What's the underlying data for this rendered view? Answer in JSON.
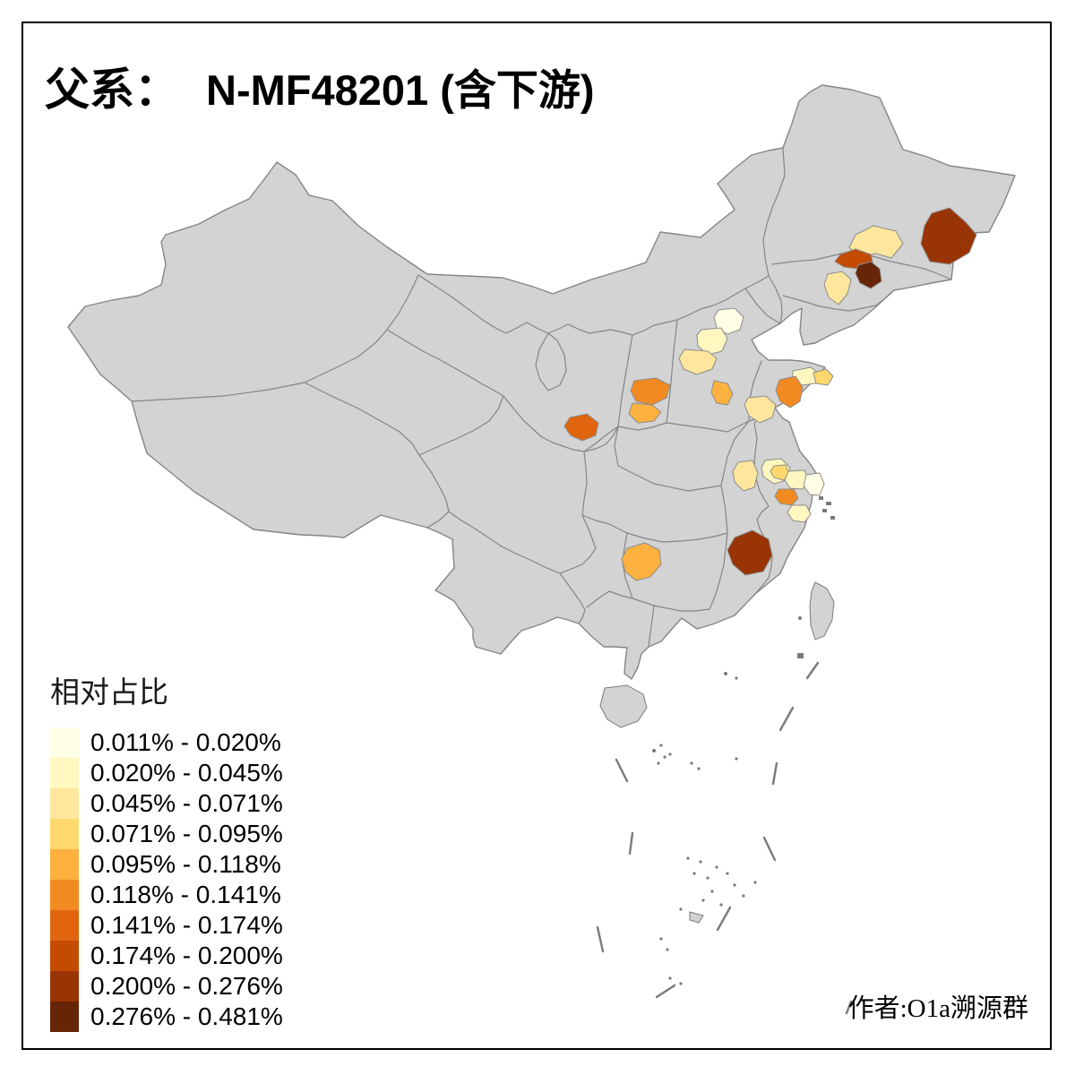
{
  "title": {
    "prefix": "父系：",
    "main": "N-MF48201 (含下游)"
  },
  "attribution": {
    "text": "作者:O1a溯源群"
  },
  "legend": {
    "title": "相对占比"
  },
  "map": {
    "land_color": "#d3d3d3",
    "border_color": "#858585",
    "background_color": "#ffffff",
    "frame_color": "#000000"
  },
  "chart_data": {
    "type": "choropleth",
    "title": "父系： N-MF48201 (含下游)",
    "legend_title": "相对占比",
    "legend_position": "bottom-left",
    "classes": [
      {
        "label": "0.011% - 0.020%",
        "color": "#FFFFE5"
      },
      {
        "label": "0.020% - 0.045%",
        "color": "#FFF7C0"
      },
      {
        "label": "0.045% - 0.071%",
        "color": "#FEE79C"
      },
      {
        "label": "0.071% - 0.095%",
        "color": "#FED86D"
      },
      {
        "label": "0.095% - 0.118%",
        "color": "#FDB13F"
      },
      {
        "label": "0.118% - 0.141%",
        "color": "#F28A22"
      },
      {
        "label": "0.141% - 0.174%",
        "color": "#E1650E"
      },
      {
        "label": "0.174% - 0.200%",
        "color": "#C34B02"
      },
      {
        "label": "0.200% - 0.276%",
        "color": "#993404"
      },
      {
        "label": "0.276% - 0.481%",
        "color": "#662506"
      }
    ],
    "regions": [
      {
        "id": "northeast-heilongjiang-east",
        "class_index": 9
      },
      {
        "id": "northeast-jilin-pale",
        "class_index": 3
      },
      {
        "id": "northeast-jilin-rust",
        "class_index": 8
      },
      {
        "id": "northeast-jilin-dark",
        "class_index": 10
      },
      {
        "id": "northeast-liaoning-pale",
        "class_index": 3
      },
      {
        "id": "beijing",
        "class_index": 1
      },
      {
        "id": "hebei-northwest",
        "class_index": 2
      },
      {
        "id": "hebei-west",
        "class_index": 3
      },
      {
        "id": "hebei-south",
        "class_index": 5
      },
      {
        "id": "shandong-west-pale",
        "class_index": 3
      },
      {
        "id": "shandong-center-orange",
        "class_index": 6
      },
      {
        "id": "shandong-north-pale",
        "class_index": 2
      },
      {
        "id": "shandong-east-light-orange",
        "class_index": 4
      },
      {
        "id": "shanxi-south-upper",
        "class_index": 6
      },
      {
        "id": "shanxi-south-lower",
        "class_index": 5
      },
      {
        "id": "shaanxi-central",
        "class_index": 7
      },
      {
        "id": "jiangsu-northwest-pale",
        "class_index": 3
      },
      {
        "id": "jiangsu-central-cream",
        "class_index": 2
      },
      {
        "id": "jiangsu-central-mid",
        "class_index": 4
      },
      {
        "id": "jiangsu-east-pale",
        "class_index": 2
      },
      {
        "id": "jiangsu-south-orange",
        "class_index": 6
      },
      {
        "id": "jiangsu-coast-cream",
        "class_index": 1
      },
      {
        "id": "zhejiang-north-pale",
        "class_index": 2
      },
      {
        "id": "hunan-west",
        "class_index": 5
      },
      {
        "id": "fujian-northwest",
        "class_index": 9
      }
    ]
  }
}
